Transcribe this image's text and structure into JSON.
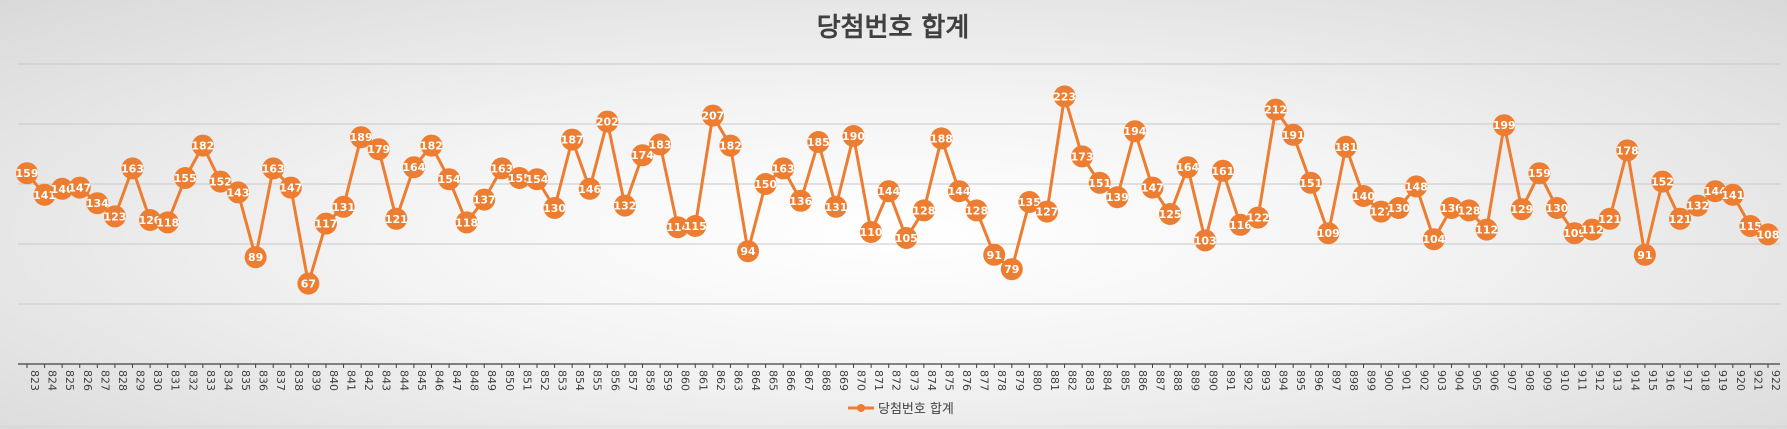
{
  "chart_data": {
    "type": "line",
    "title": "당첨번호 합계",
    "xlabel": "",
    "ylabel": "",
    "ylim": [
      0,
      250
    ],
    "grid": true,
    "legend_position": "bottom",
    "x_start": 823,
    "x": [
      823,
      824,
      825,
      826,
      827,
      828,
      829,
      830,
      831,
      832,
      833,
      834,
      835,
      836,
      837,
      838,
      839,
      840,
      841,
      842,
      843,
      844,
      845,
      846,
      847,
      848,
      849,
      850,
      851,
      852,
      853,
      854,
      855,
      856,
      857,
      858,
      859,
      860,
      861,
      862,
      863,
      864,
      865,
      866,
      867,
      868,
      869,
      870,
      871,
      872,
      873,
      874,
      875,
      876,
      877,
      878,
      879,
      880,
      881,
      882,
      883,
      884,
      885,
      886,
      887,
      888,
      889,
      890,
      891,
      892,
      893,
      894,
      895,
      896,
      897,
      898,
      899,
      900,
      901,
      902,
      903,
      904,
      905,
      906,
      907,
      908,
      909,
      910,
      911,
      912,
      913,
      914,
      915,
      916,
      917,
      918,
      919,
      920,
      921,
      922
    ],
    "series": [
      {
        "name": "당첨번호 합계",
        "color": "#ED7D31",
        "values": [
          159,
          141,
          146,
          147,
          134,
          123,
          163,
          120,
          118,
          155,
          182,
          152,
          143,
          89,
          163,
          147,
          67,
          117,
          131,
          189,
          179,
          121,
          164,
          182,
          154,
          118,
          137,
          163,
          155,
          154,
          130,
          187,
          146,
          202,
          132,
          174,
          183,
          114,
          115,
          207,
          182,
          94,
          150,
          163,
          136,
          185,
          131,
          190,
          110,
          144,
          105,
          128,
          188,
          144,
          128,
          91,
          79,
          135,
          127,
          223,
          173,
          151,
          139,
          194,
          147,
          125,
          164,
          103,
          161,
          116,
          122,
          212,
          191,
          151,
          109,
          181,
          140,
          127,
          130,
          148,
          104,
          130,
          128,
          112,
          199,
          129,
          159,
          130,
          109,
          112,
          121,
          178,
          91,
          152,
          121,
          132,
          144,
          141,
          115,
          108
        ]
      }
    ]
  }
}
